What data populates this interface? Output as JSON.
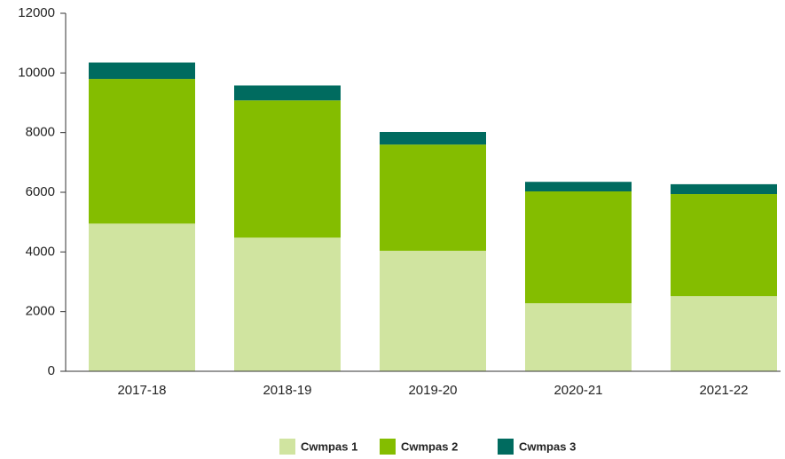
{
  "chart_data": {
    "type": "stacked_bar",
    "categories": [
      "2017-18",
      "2018-19",
      "2019-20",
      "2020-21",
      "2021-22"
    ],
    "series": [
      {
        "name": "Cwmpas 1",
        "color": "#d0e4a0",
        "values": [
          4950,
          4480,
          4040,
          2280,
          2520
        ]
      },
      {
        "name": "Cwmpas 2",
        "color": "#84bd00",
        "values": [
          4850,
          4600,
          3560,
          3750,
          3420
        ]
      },
      {
        "name": "Cwmpas 3",
        "color": "#006b5f",
        "values": [
          550,
          500,
          420,
          320,
          330
        ]
      }
    ],
    "ylim": [
      0,
      12000
    ],
    "yticks": [
      0,
      2000,
      4000,
      6000,
      8000,
      10000,
      12000
    ],
    "legend": "bottom"
  }
}
